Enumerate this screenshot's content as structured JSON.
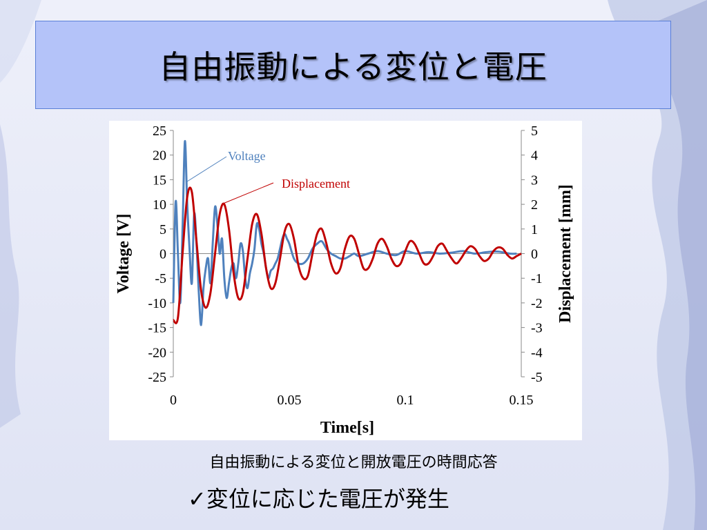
{
  "slide": {
    "title": "自由振動による変位と電圧",
    "caption": "自由振動による変位と開放電圧の時間応答",
    "bullet": "✓変位に応じた電圧が発生"
  },
  "colors": {
    "title_bg": "#b4c3f9",
    "voltage": "#4f81bd",
    "displacement": "#c00000"
  },
  "chart_data": {
    "type": "line",
    "xlabel": "Time[s]",
    "ylabel_left": "Voltage [V]",
    "ylabel_right": "Displacement [mm]",
    "xlim": [
      0,
      0.15
    ],
    "ylim_left": [
      -25,
      25
    ],
    "ylim_right": [
      -5,
      5
    ],
    "x_ticks": [
      "0",
      "0.05",
      "0.1",
      "0.15"
    ],
    "x_tick_values": [
      0,
      0.05,
      0.1,
      0.15
    ],
    "y_ticks_left": [
      "25",
      "20",
      "15",
      "10",
      "5",
      "0",
      "-5",
      "-10",
      "-15",
      "-20",
      "-25"
    ],
    "y_tick_values_left": [
      25,
      20,
      15,
      10,
      5,
      0,
      -5,
      -10,
      -15,
      -20,
      -25
    ],
    "y_ticks_right": [
      "5",
      "4",
      "3",
      "2",
      "1",
      "0",
      "-1",
      "-2",
      "-3",
      "-4",
      "-5"
    ],
    "y_tick_values_right": [
      5,
      4,
      3,
      2,
      1,
      0,
      -1,
      -2,
      -3,
      -4,
      -5
    ],
    "grid": false,
    "series": [
      {
        "name": "Voltage",
        "axis": "left",
        "x": [
          0,
          0.001,
          0.002,
          0.003,
          0.004,
          0.005,
          0.006,
          0.007,
          0.008,
          0.009,
          0.01,
          0.011,
          0.012,
          0.013,
          0.014,
          0.015,
          0.016,
          0.017,
          0.018,
          0.019,
          0.02,
          0.021,
          0.022,
          0.023,
          0.024,
          0.025,
          0.026,
          0.027,
          0.028,
          0.029,
          0.03,
          0.031,
          0.032,
          0.033,
          0.034,
          0.035,
          0.036,
          0.037,
          0.038,
          0.039,
          0.04,
          0.041,
          0.042,
          0.043,
          0.044,
          0.045,
          0.046,
          0.047,
          0.048,
          0.049,
          0.05,
          0.052,
          0.054,
          0.056,
          0.058,
          0.06,
          0.062,
          0.064,
          0.066,
          0.068,
          0.07,
          0.072,
          0.074,
          0.076,
          0.078,
          0.08,
          0.084,
          0.088,
          0.092,
          0.096,
          0.1,
          0.105,
          0.11,
          0.115,
          0.12,
          0.125,
          0.13,
          0.135,
          0.14,
          0.145,
          0.148
        ],
        "values": [
          -10,
          10.5,
          0,
          -10,
          5,
          22.8,
          10,
          1,
          -6,
          8,
          2,
          -8,
          -14.5,
          -7,
          -3,
          -1,
          -6,
          2,
          9.5,
          6,
          0,
          3,
          -5,
          -9,
          -6,
          -3,
          -2,
          -5,
          -2,
          2,
          0.5,
          -5,
          -7,
          -4,
          -2,
          1,
          6,
          5,
          2,
          0,
          -3,
          -5,
          -3.5,
          -3,
          -2,
          -1,
          1,
          3,
          4,
          3,
          2,
          -1,
          -2,
          -2,
          -1,
          1,
          2,
          2.5,
          1,
          0,
          -0.5,
          -1,
          -1,
          -0.5,
          0,
          -0.5,
          0,
          0.5,
          0,
          -0.3,
          0.5,
          0,
          0.3,
          0,
          0.2,
          0.5,
          0,
          0.3,
          0.4,
          0,
          0
        ]
      },
      {
        "name": "Displacement",
        "axis": "right",
        "x": [
          0,
          0.002,
          0.004,
          0.006,
          0.008,
          0.01,
          0.012,
          0.014,
          0.016,
          0.018,
          0.02,
          0.022,
          0.024,
          0.026,
          0.028,
          0.03,
          0.032,
          0.034,
          0.036,
          0.038,
          0.04,
          0.042,
          0.044,
          0.046,
          0.048,
          0.05,
          0.052,
          0.054,
          0.056,
          0.058,
          0.06,
          0.062,
          0.064,
          0.066,
          0.068,
          0.07,
          0.072,
          0.074,
          0.076,
          0.078,
          0.08,
          0.082,
          0.084,
          0.086,
          0.088,
          0.09,
          0.092,
          0.094,
          0.096,
          0.098,
          0.1,
          0.102,
          0.104,
          0.106,
          0.108,
          0.11,
          0.112,
          0.114,
          0.116,
          0.118,
          0.12,
          0.122,
          0.124,
          0.126,
          0.128,
          0.13,
          0.132,
          0.134,
          0.136,
          0.138,
          0.14,
          0.142,
          0.144,
          0.146,
          0.148,
          0.15
        ],
        "values": [
          -2.7,
          -2.6,
          0,
          2.3,
          2.5,
          0.5,
          -1.5,
          -2.2,
          -1.6,
          0,
          1.6,
          2.0,
          1.0,
          -0.8,
          -1.8,
          -1.6,
          -0.2,
          1.2,
          1.6,
          0.8,
          -0.6,
          -1.4,
          -1.2,
          -0.2,
          0.9,
          1.2,
          0.6,
          -0.5,
          -1.0,
          -0.9,
          0,
          0.8,
          1.0,
          0.4,
          -0.4,
          -0.8,
          -0.6,
          0.2,
          0.7,
          0.6,
          0,
          -0.6,
          -0.6,
          -0.2,
          0.4,
          0.6,
          0.3,
          -0.2,
          -0.5,
          -0.4,
          0.1,
          0.5,
          0.4,
          0,
          -0.4,
          -0.4,
          -0.1,
          0.3,
          0.4,
          0.1,
          -0.2,
          -0.4,
          -0.2,
          0.1,
          0.3,
          0.2,
          -0.1,
          -0.3,
          -0.2,
          0.1,
          0.25,
          0.2,
          -0.05,
          -0.2,
          -0.1,
          0
        ]
      }
    ],
    "annotations": [
      "Voltage",
      "Displacement"
    ]
  }
}
